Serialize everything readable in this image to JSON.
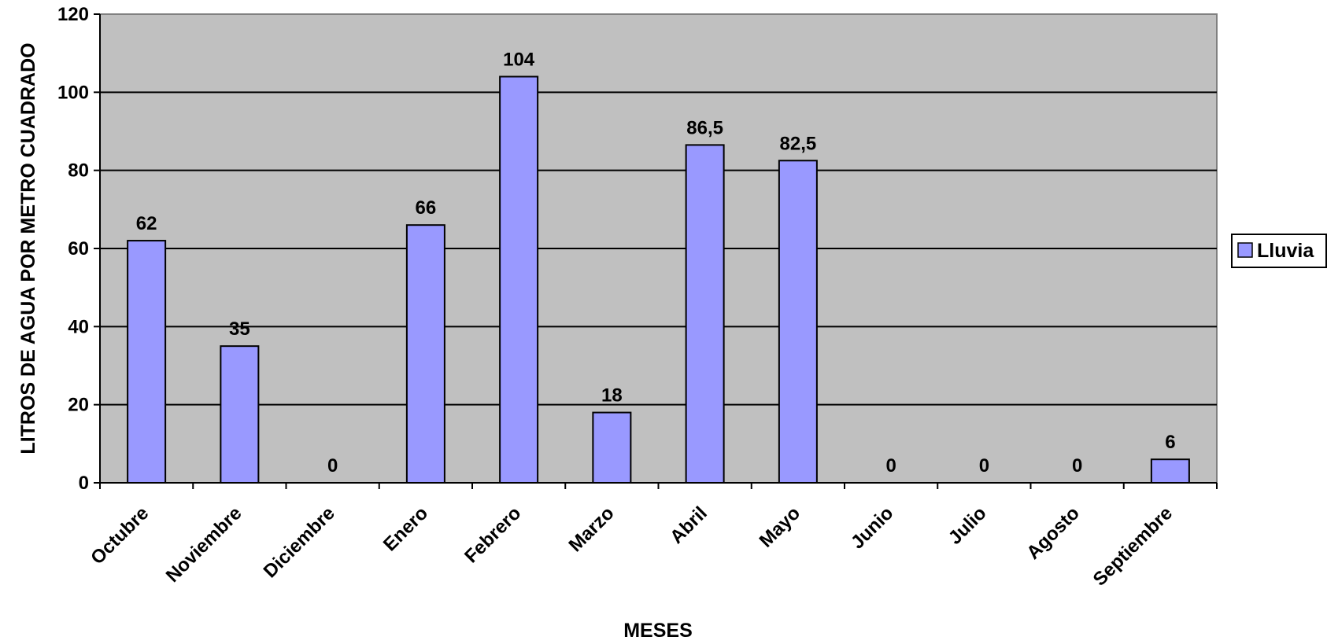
{
  "chart_data": {
    "type": "bar",
    "categories": [
      "Octubre",
      "Noviembre",
      "Diciembre",
      "Enero",
      "Febrero",
      "Marzo",
      "Abril",
      "Mayo",
      "Junio",
      "Julio",
      "Agosto",
      "Septiembre"
    ],
    "series": [
      {
        "name": "Lluvia",
        "values": [
          62,
          35,
          0,
          66,
          104,
          18,
          86.5,
          82.5,
          0,
          0,
          0,
          6
        ],
        "labels": [
          "62",
          "35",
          "0",
          "66",
          "104",
          "18",
          "86,5",
          "82,5",
          "0",
          "0",
          "0",
          "6"
        ],
        "color": "#9999ff"
      }
    ],
    "title": "",
    "xlabel": "MESES",
    "ylabel": "LITROS DE AGUA POR METRO CUADRADO",
    "ylim": [
      0,
      120
    ],
    "yticks": [
      "0",
      "20",
      "40",
      "60",
      "80",
      "100",
      "120"
    ],
    "grid": true,
    "legend_position": "right",
    "plot_background": "#c0c0c0"
  }
}
